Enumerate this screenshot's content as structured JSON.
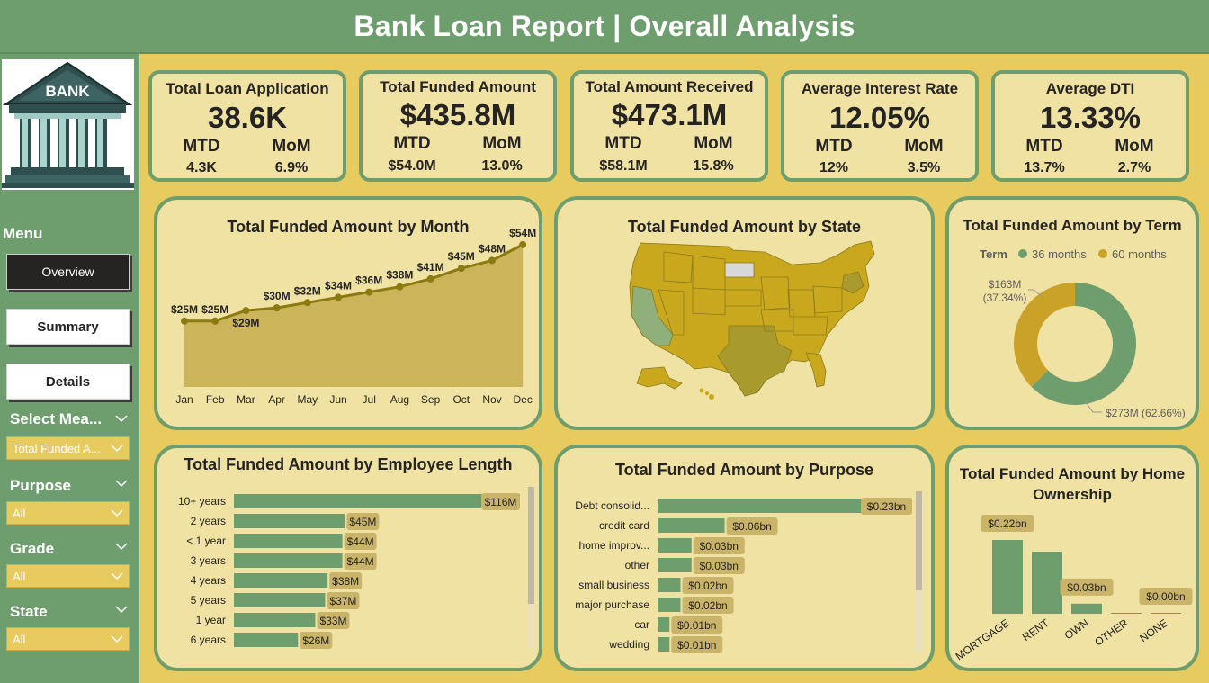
{
  "header": {
    "title": "Bank Loan Report | Overall Analysis"
  },
  "logo": {
    "text": "BANK"
  },
  "menu": {
    "title": "Menu",
    "buttons": [
      {
        "label": "Overview",
        "active": true
      },
      {
        "label": "Summary",
        "active": false
      },
      {
        "label": "Details",
        "active": false
      }
    ]
  },
  "slicers": [
    {
      "title": "Select Mea...",
      "value": "Total Funded A..."
    },
    {
      "title": "Purpose",
      "value": "All"
    },
    {
      "title": "Grade",
      "value": "All"
    },
    {
      "title": "State",
      "value": "All"
    }
  ],
  "kpis": [
    {
      "title": "Total Loan Application",
      "value": "38.6K",
      "mtd_label": "MTD",
      "mom_label": "MoM",
      "mtd": "4.3K",
      "mom": "6.9%"
    },
    {
      "title": "Total Funded Amount",
      "value": "$435.8M",
      "mtd_label": "MTD",
      "mom_label": "MoM",
      "mtd": "$54.0M",
      "mom": "13.0%"
    },
    {
      "title": "Total Amount Received",
      "value": "$473.1M",
      "mtd_label": "MTD",
      "mom_label": "MoM",
      "mtd": "$58.1M",
      "mom": "15.8%"
    },
    {
      "title": "Average Interest Rate",
      "value": "12.05%",
      "mtd_label": "MTD",
      "mom_label": "MoM",
      "mtd": "12%",
      "mom": "3.5%"
    },
    {
      "title": "Average DTI",
      "value": "13.33%",
      "mtd_label": "MTD",
      "mom_label": "MoM",
      "mtd": "13.7%",
      "mom": "2.7%"
    }
  ],
  "colors": {
    "green": "#6E9E6E",
    "gold": "#C9A227",
    "olive": "#A08A1A",
    "background": "#E8CB5E",
    "card": "#F0E2A3",
    "label_bg": "#C9B46A"
  },
  "chart_data": [
    {
      "id": "month",
      "type": "area",
      "title": "Total Funded Amount by Month",
      "categories": [
        "Jan",
        "Feb",
        "Mar",
        "Apr",
        "May",
        "Jun",
        "Jul",
        "Aug",
        "Sep",
        "Oct",
        "Nov",
        "Dec"
      ],
      "values": [
        25,
        25,
        29,
        30,
        32,
        34,
        36,
        38,
        41,
        45,
        48,
        54
      ],
      "labels": [
        "$25M",
        "$25M",
        "$29M",
        "$30M",
        "$32M",
        "$34M",
        "$36M",
        "$38M",
        "$41M",
        "$45M",
        "$48M",
        "$54M"
      ],
      "ylim": [
        0,
        56
      ]
    },
    {
      "id": "state",
      "type": "map",
      "title": "Total Funded Amount by State"
    },
    {
      "id": "term",
      "type": "pie",
      "title": "Total Funded Amount by Term",
      "legend_title": "Term",
      "categories": [
        "36 months",
        "60 months"
      ],
      "values": [
        273,
        163
      ],
      "percents": [
        62.66,
        37.34
      ],
      "labels": [
        "$273M (62.66%)",
        "$163M (37.34%)"
      ],
      "colors": [
        "#6E9E6E",
        "#C9A227"
      ],
      "legend": "top"
    },
    {
      "id": "emp",
      "type": "bar",
      "orientation": "horizontal",
      "title": "Total Funded Amount by Employee Length",
      "categories": [
        "10+ years",
        "2 years",
        "< 1 year",
        "3 years",
        "4 years",
        "5 years",
        "1 year",
        "6 years"
      ],
      "values": [
        116,
        45,
        44,
        44,
        38,
        37,
        33,
        26
      ],
      "labels": [
        "$116M",
        "$45M",
        "$44M",
        "$44M",
        "$38M",
        "$37M",
        "$33M",
        "$26M"
      ]
    },
    {
      "id": "purpose",
      "type": "bar",
      "orientation": "horizontal",
      "title": "Total Funded Amount by Purpose",
      "categories": [
        "Debt consolid...",
        "credit card",
        "home improv...",
        "other",
        "small business",
        "major purchase",
        "car",
        "wedding"
      ],
      "values": [
        0.23,
        0.06,
        0.03,
        0.03,
        0.02,
        0.02,
        0.01,
        0.01
      ],
      "labels": [
        "$0.23bn",
        "$0.06bn",
        "$0.03bn",
        "$0.03bn",
        "$0.02bn",
        "$0.02bn",
        "$0.01bn",
        "$0.01bn"
      ]
    },
    {
      "id": "home",
      "type": "bar",
      "orientation": "vertical",
      "title": "Total Funded Amount by Home Ownership",
      "categories": [
        "MORTGAGE",
        "RENT",
        "OWN",
        "OTHER",
        "NONE"
      ],
      "values": [
        0.22,
        0.185,
        0.03,
        0.002,
        0.0005
      ],
      "labels": [
        "$0.22bn",
        "",
        "$0.03bn",
        "",
        "$0.00bn"
      ]
    }
  ]
}
